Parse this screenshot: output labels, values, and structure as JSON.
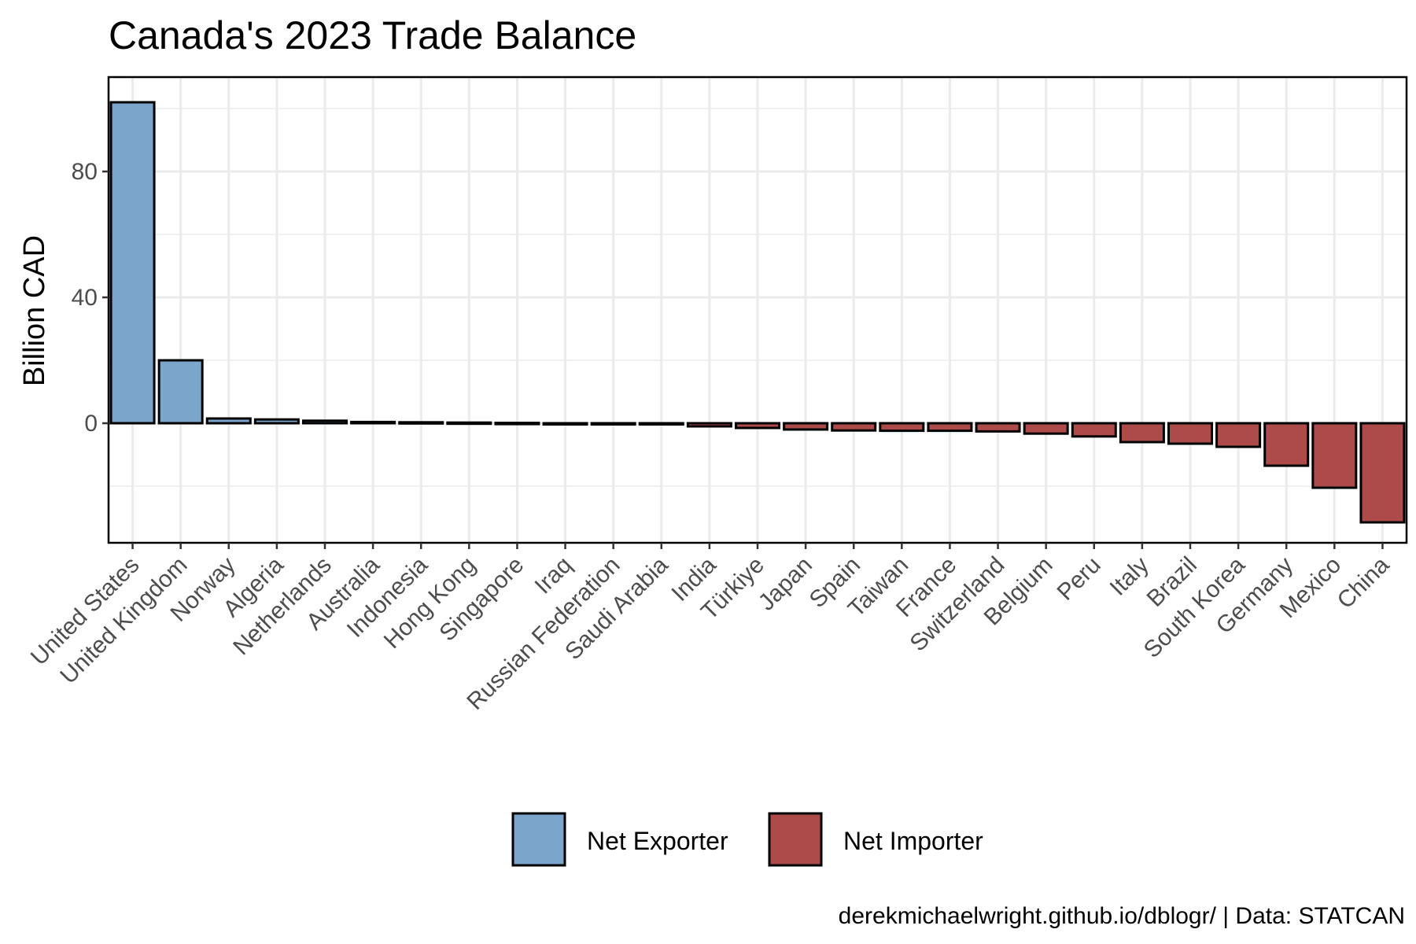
{
  "chart_data": {
    "type": "bar",
    "title": "Canada's 2023 Trade Balance",
    "xlabel": "",
    "ylabel": "Billion CAD",
    "ylim": [
      -38,
      110
    ],
    "yticks": [
      0,
      40,
      80
    ],
    "grid": true,
    "legend_position": "bottom",
    "caption": "derekmichaelwright.github.io/dblogr/ | Data: STATCAN",
    "colors": {
      "Net Exporter": "#7ba5cb",
      "Net Importer": "#ad4a4a"
    },
    "legend": [
      {
        "label": "Net Exporter",
        "color": "#7ba5cb"
      },
      {
        "label": "Net Importer",
        "color": "#ad4a4a"
      }
    ],
    "categories": [
      "United States",
      "United Kingdom",
      "Norway",
      "Algeria",
      "Netherlands",
      "Australia",
      "Indonesia",
      "Hong Kong",
      "Singapore",
      "Iraq",
      "Russian Federation",
      "Saudi Arabia",
      "India",
      "Türkiye",
      "Japan",
      "Spain",
      "Taiwan",
      "France",
      "Switzerland",
      "Belgium",
      "Peru",
      "Italy",
      "Brazil",
      "South Korea",
      "Germany",
      "Mexico",
      "China"
    ],
    "values": [
      102,
      20,
      1.5,
      1.2,
      0.8,
      0.4,
      0.3,
      0.2,
      0.1,
      -0.1,
      -0.2,
      -0.3,
      -1.0,
      -1.5,
      -2.0,
      -2.3,
      -2.4,
      -2.4,
      -2.6,
      -3.3,
      -4.2,
      -6.0,
      -6.5,
      -7.5,
      -13.5,
      -20.5,
      -31.5
    ],
    "groups": [
      "Net Exporter",
      "Net Exporter",
      "Net Exporter",
      "Net Exporter",
      "Net Exporter",
      "Net Exporter",
      "Net Exporter",
      "Net Exporter",
      "Net Exporter",
      "Net Importer",
      "Net Importer",
      "Net Importer",
      "Net Importer",
      "Net Importer",
      "Net Importer",
      "Net Importer",
      "Net Importer",
      "Net Importer",
      "Net Importer",
      "Net Importer",
      "Net Importer",
      "Net Importer",
      "Net Importer",
      "Net Importer",
      "Net Importer",
      "Net Importer",
      "Net Importer"
    ]
  }
}
